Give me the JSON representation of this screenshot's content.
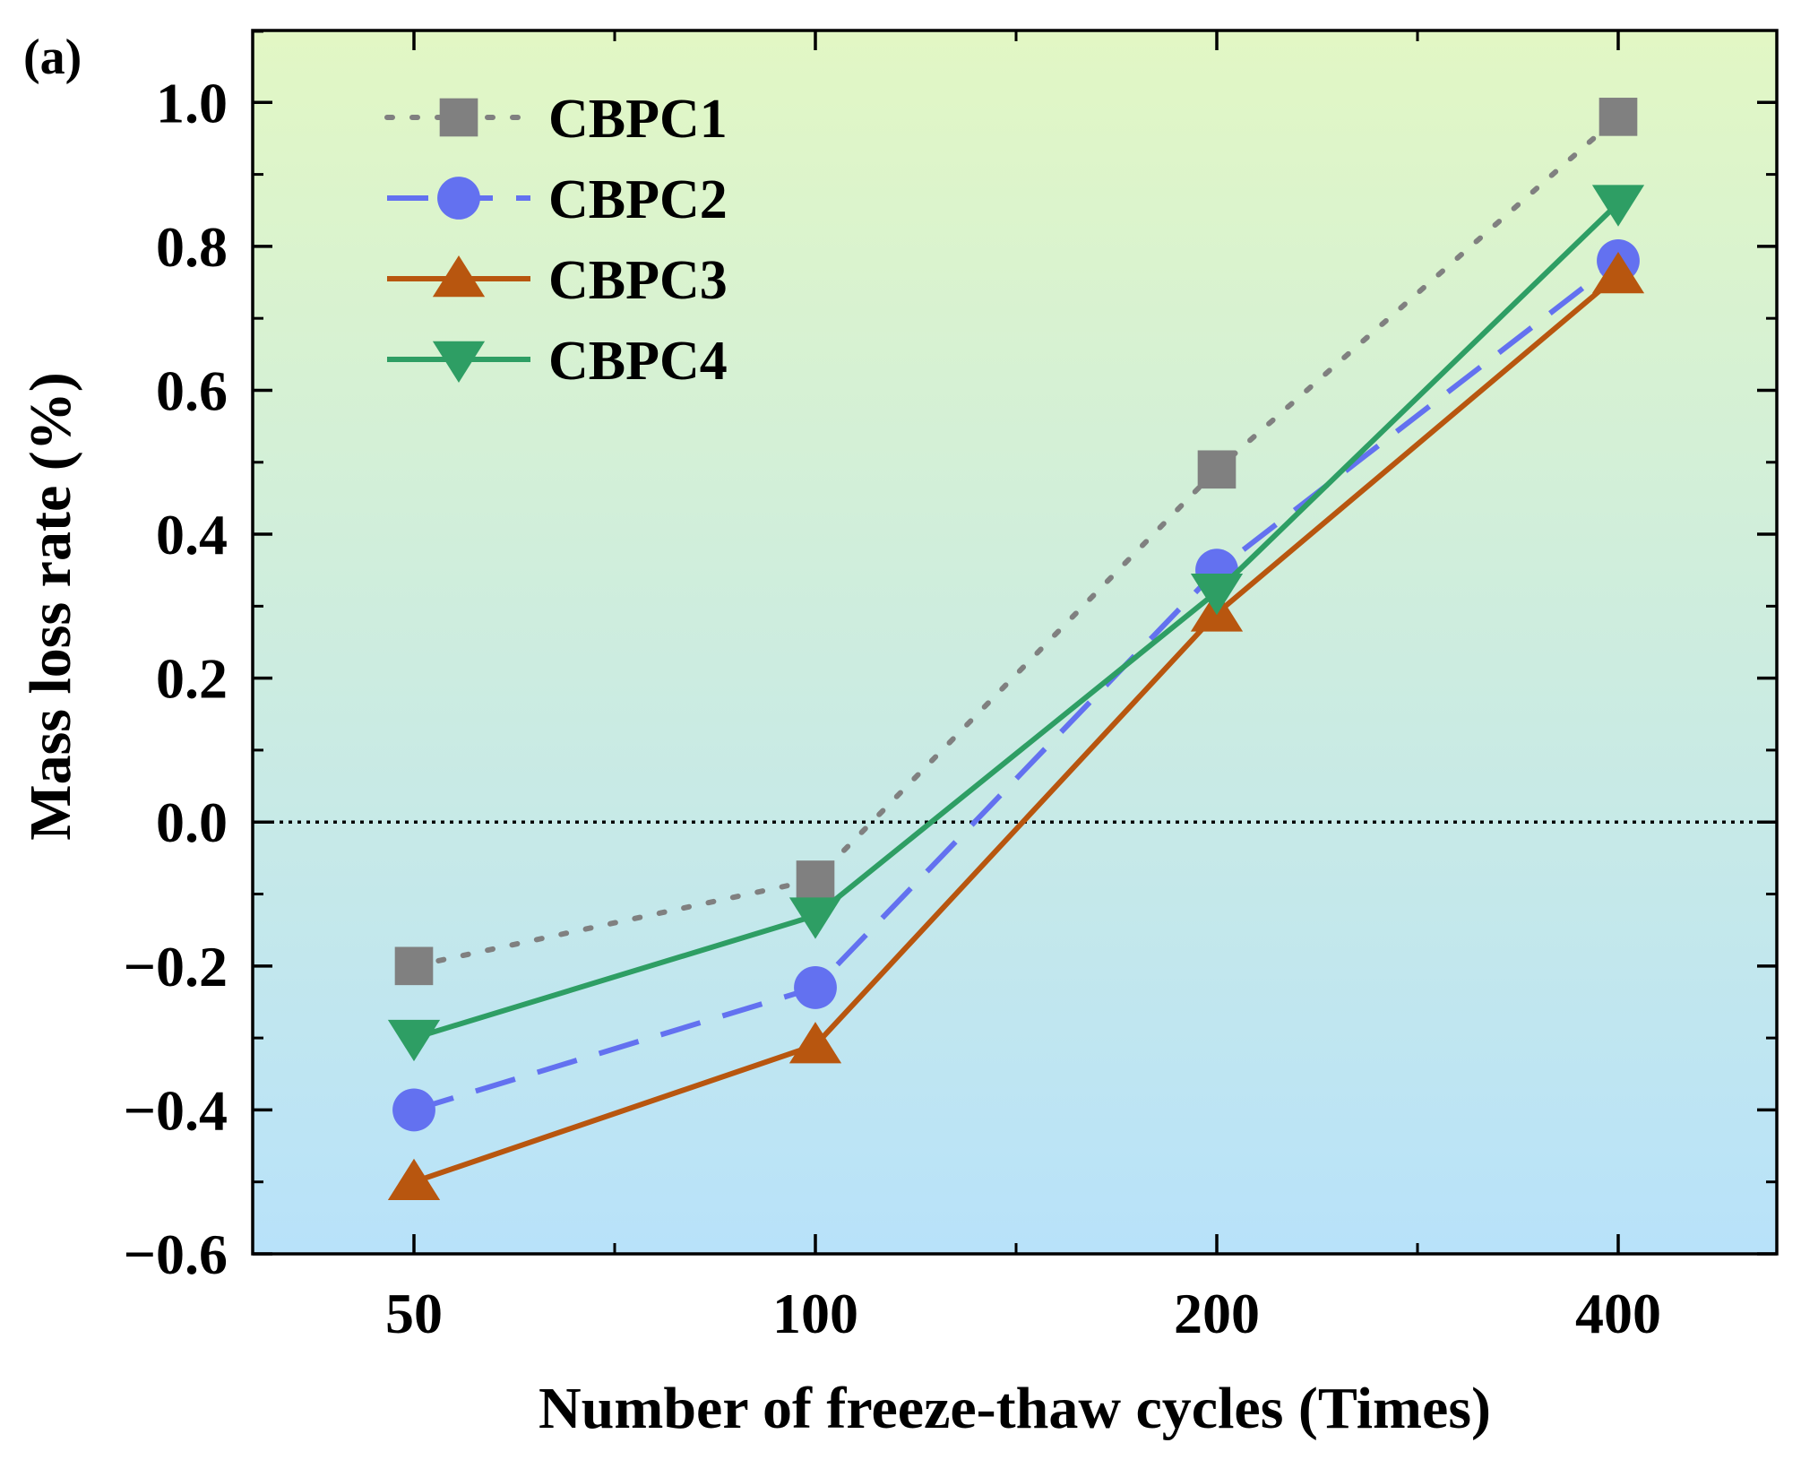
{
  "chart_data": {
    "type": "line",
    "panel_label": "(a)",
    "xlabel": "Number of freeze-thaw cycles (Times)",
    "ylabel": "Mass loss rate (%)",
    "categories": [
      "50",
      "100",
      "200",
      "400"
    ],
    "ylim": [
      -0.6,
      1.1
    ],
    "yticks": [
      -0.6,
      -0.4,
      -0.2,
      0.0,
      0.2,
      0.4,
      0.6,
      0.8,
      1.0
    ],
    "ytick_labels": [
      "−0.6",
      "−0.4",
      "−0.2",
      "0.0",
      "0.2",
      "0.4",
      "0.6",
      "0.8",
      "1.0"
    ],
    "reference_line": 0.0,
    "grid": false,
    "legend_position": "top-left",
    "background": {
      "top": "#e2f7c4",
      "bottom": "#b8e2fa"
    },
    "series": [
      {
        "name": "CBPC1",
        "values": [
          -0.2,
          -0.08,
          0.49,
          0.98
        ],
        "color": "#808080",
        "marker": "square",
        "line": "dotted"
      },
      {
        "name": "CBPC2",
        "values": [
          -0.4,
          -0.23,
          0.35,
          0.78
        ],
        "color": "#6371f0",
        "marker": "circle",
        "line": "dashed"
      },
      {
        "name": "CBPC3",
        "values": [
          -0.5,
          -0.31,
          0.29,
          0.76
        ],
        "color": "#b8560f",
        "marker": "triangle-up",
        "line": "solid"
      },
      {
        "name": "CBPC4",
        "values": [
          -0.3,
          -0.13,
          0.32,
          0.86
        ],
        "color": "#2e9e64",
        "marker": "triangle-down",
        "line": "solid"
      }
    ]
  }
}
